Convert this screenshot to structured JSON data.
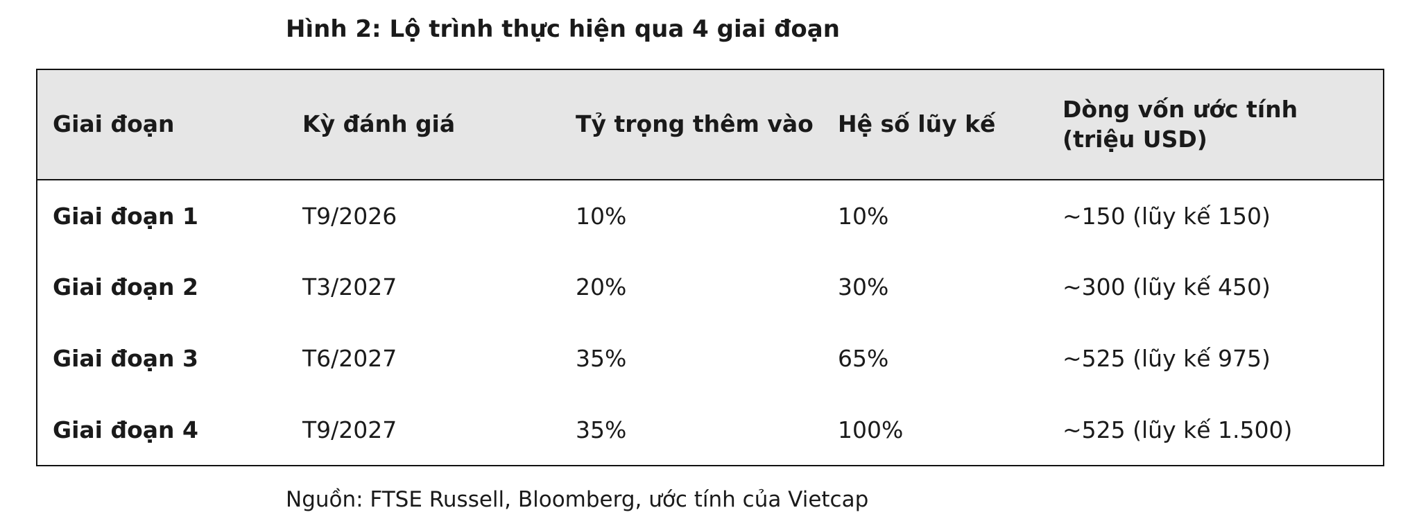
{
  "title": "Hình 2: Lộ trình thực hiện qua 4 giai đoạn",
  "table": {
    "headers": [
      "Giai đoạn",
      "Kỳ đánh giá",
      "Tỷ trọng thêm vào",
      "Hệ số lũy kế",
      "Dòng vốn ước tính (triệu USD)"
    ],
    "rows": [
      [
        "Giai đoạn 1",
        "T9/2026",
        "10%",
        "10%",
        "~150 (lũy kế 150)"
      ],
      [
        "Giai đoạn 2",
        "T3/2027",
        "20%",
        "30%",
        "~300 (lũy kế 450)"
      ],
      [
        "Giai đoạn 3",
        "T6/2027",
        "35%",
        "65%",
        "~525 (lũy kế 975)"
      ],
      [
        "Giai đoạn 4",
        "T9/2027",
        "35%",
        "100%",
        "~525 (lũy kế 1.500)"
      ]
    ]
  },
  "source": "Nguồn: FTSE Russell, Bloomberg, ước tính của Vietcap"
}
